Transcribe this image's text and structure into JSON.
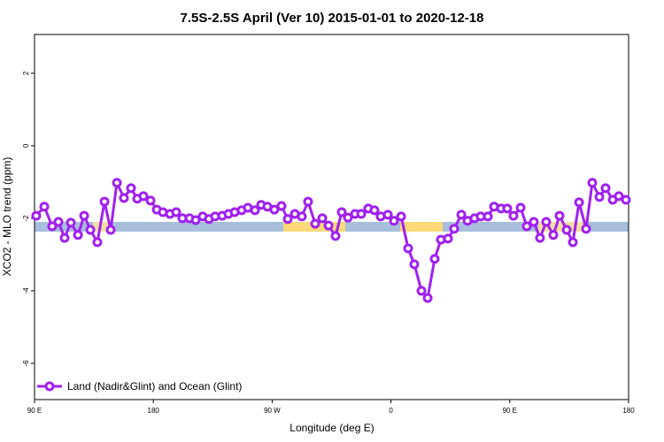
{
  "chart_data": {
    "type": "line",
    "title": "7.5S-2.5S April (Ver 10)   2015-01-01 to 2020-12-18",
    "x_label": "Longitude (deg E)",
    "y_label": "XCO2 - MLO trend (ppm)",
    "xlim": [
      90,
      540
    ],
    "ylim": [
      -7,
      3.07
    ],
    "xticks": [
      {
        "value": 90,
        "label": "90 E"
      },
      {
        "value": 180,
        "label": "180"
      },
      {
        "value": 270,
        "label": "90 W"
      },
      {
        "value": 360,
        "label": "0"
      },
      {
        "value": 450,
        "label": "90 E"
      },
      {
        "value": 540,
        "label": "180"
      }
    ],
    "yticks": [
      -6,
      -4,
      -2,
      0,
      2
    ],
    "legend": "bottom-left",
    "series": [
      {
        "name": "Land (Nadir&Glint) and Ocean (Glint)",
        "color": "#a020f0",
        "x": [
          91.3,
          97.4,
          103.4,
          108.1,
          112.8,
          117.5,
          122.9,
          127.6,
          132.3,
          137.6,
          143,
          147.7,
          152.4,
          157.7,
          163.1,
          167.8,
          172.5,
          177.9,
          182.6,
          187.2,
          192.6,
          197.3,
          202,
          207.4,
          212.1,
          217.4,
          222.1,
          226.8,
          232.2,
          236.9,
          241.6,
          246.9,
          251.6,
          257,
          261.7,
          266.4,
          271.7,
          277.1,
          281.8,
          287.2,
          292.5,
          297.2,
          302.6,
          308,
          312.7,
          318,
          322.7,
          327.4,
          332.8,
          337.5,
          342.8,
          347.5,
          352.2,
          357.6,
          362.3,
          367.7,
          373,
          377.7,
          383.1,
          387.8,
          393.1,
          397.8,
          403.2,
          407.9,
          413.3,
          418,
          423.3,
          428,
          433.4,
          438.1,
          443.4,
          448.1,
          452.8,
          458.2,
          462.9,
          468.2,
          472.9,
          477.6,
          483,
          487.7,
          493.1,
          497.8,
          502.5,
          507.8,
          512.5,
          517.9,
          522.6,
          528,
          532.6,
          538
        ],
        "values": [
          -1.93,
          -1.68,
          -2.22,
          -2.1,
          -2.54,
          -2.12,
          -2.46,
          -1.93,
          -2.32,
          -2.66,
          -1.54,
          -2.32,
          -1.02,
          -1.44,
          -1.17,
          -1.46,
          -1.39,
          -1.51,
          -1.76,
          -1.83,
          -1.88,
          -1.83,
          -2,
          -2,
          -2.05,
          -1.95,
          -2.02,
          -1.95,
          -1.93,
          -1.88,
          -1.83,
          -1.78,
          -1.71,
          -1.78,
          -1.63,
          -1.68,
          -1.76,
          -1.66,
          -2.02,
          -1.88,
          -1.95,
          -1.54,
          -2.15,
          -2,
          -2.2,
          -2.49,
          -1.83,
          -1.98,
          -1.88,
          -1.88,
          -1.73,
          -1.78,
          -1.95,
          -1.9,
          -2.07,
          -1.95,
          -2.83,
          -3.27,
          -4,
          -4.2,
          -3.12,
          -2.59,
          -2.56,
          -2.29,
          -1.9,
          -2.07,
          -2,
          -1.95,
          -1.95,
          -1.68,
          -1.73,
          -1.73,
          -1.93,
          -1.71,
          -2.22,
          -2.1,
          -2.54,
          -2.1,
          -2.46,
          -1.93,
          -2.32,
          -2.66,
          -1.56,
          -2.29,
          -1.02,
          -1.41,
          -1.17,
          -1.49,
          -1.39,
          -1.49
        ]
      }
    ]
  }
}
